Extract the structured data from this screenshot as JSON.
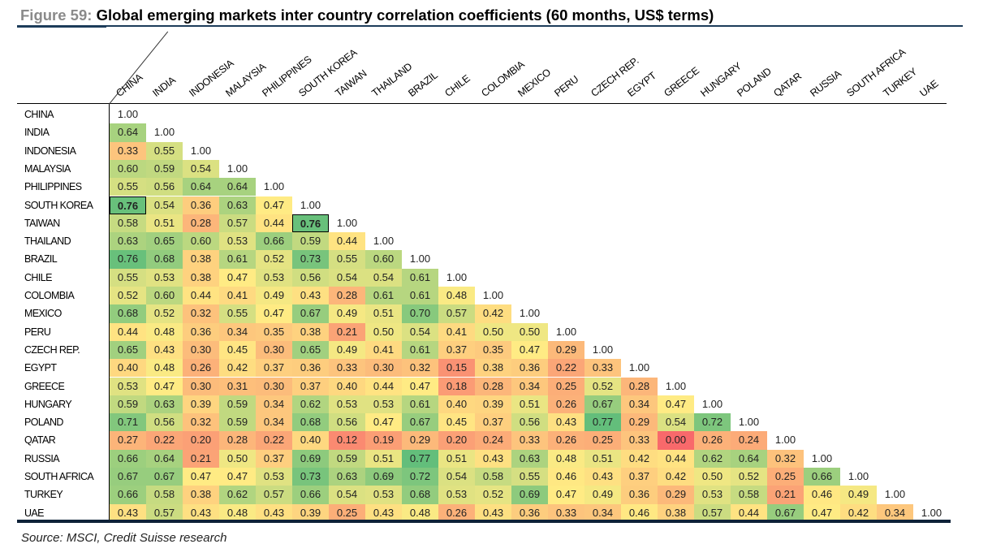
{
  "chart_data": {
    "type": "heatmap",
    "title_prefix": "Figure 59:",
    "title": "Global emerging markets inter country correlation coefficients (60 months, US$ terms)",
    "source": "Source: MSCI, Credit Suisse research",
    "columns": [
      "CHINA",
      "INDIA",
      "INDONESIA",
      "MALAYSIA",
      "PHILIPPINES",
      "SOUTH KOREA",
      "TAIWAN",
      "THAILAND",
      "BRAZIL",
      "CHILE",
      "COLOMBIA",
      "MEXICO",
      "PERU",
      "CZECH REP.",
      "EGYPT",
      "GREECE",
      "HUNGARY",
      "POLAND",
      "QATAR",
      "RUSSIA",
      "SOUTH AFRICA",
      "TURKEY",
      "UAE"
    ],
    "rows": [
      "CHINA",
      "INDIA",
      "INDONESIA",
      "MALAYSIA",
      "PHILIPPINES",
      "SOUTH KOREA",
      "TAIWAN",
      "THAILAND",
      "BRAZIL",
      "CHILE",
      "COLOMBIA",
      "MEXICO",
      "PERU",
      "CZECH REP.",
      "EGYPT",
      "GREECE",
      "HUNGARY",
      "POLAND",
      "QATAR",
      "RUSSIA",
      "SOUTH AFRICA",
      "TURKEY",
      "UAE"
    ],
    "values": [
      [
        "1.00"
      ],
      [
        "0.64",
        "1.00"
      ],
      [
        "0.33",
        "0.55",
        "1.00"
      ],
      [
        "0.60",
        "0.59",
        "0.54",
        "1.00"
      ],
      [
        "0.55",
        "0.56",
        "0.64",
        "0.64",
        "1.00"
      ],
      [
        "0.76",
        "0.54",
        "0.36",
        "0.63",
        "0.47",
        "1.00"
      ],
      [
        "0.58",
        "0.51",
        "0.28",
        "0.57",
        "0.44",
        "0.76",
        "1.00"
      ],
      [
        "0.63",
        "0.65",
        "0.60",
        "0.53",
        "0.66",
        "0.59",
        "0.44",
        "1.00"
      ],
      [
        "0.76",
        "0.68",
        "0.38",
        "0.61",
        "0.52",
        "0.73",
        "0.55",
        "0.60",
        "1.00"
      ],
      [
        "0.55",
        "0.53",
        "0.38",
        "0.47",
        "0.53",
        "0.56",
        "0.54",
        "0.54",
        "0.61",
        "1.00"
      ],
      [
        "0.52",
        "0.60",
        "0.44",
        "0.41",
        "0.49",
        "0.43",
        "0.28",
        "0.61",
        "0.61",
        "0.48",
        "1.00"
      ],
      [
        "0.68",
        "0.52",
        "0.32",
        "0.55",
        "0.47",
        "0.67",
        "0.49",
        "0.51",
        "0.70",
        "0.57",
        "0.42",
        "1.00"
      ],
      [
        "0.44",
        "0.48",
        "0.36",
        "0.34",
        "0.35",
        "0.38",
        "0.21",
        "0.50",
        "0.54",
        "0.41",
        "0.50",
        "0.50",
        "1.00"
      ],
      [
        "0.65",
        "0.43",
        "0.30",
        "0.45",
        "0.30",
        "0.65",
        "0.49",
        "0.41",
        "0.61",
        "0.37",
        "0.35",
        "0.47",
        "0.29",
        "1.00"
      ],
      [
        "0.40",
        "0.48",
        "0.26",
        "0.42",
        "0.37",
        "0.36",
        "0.33",
        "0.30",
        "0.32",
        "0.15",
        "0.38",
        "0.36",
        "0.22",
        "0.33",
        "1.00"
      ],
      [
        "0.53",
        "0.47",
        "0.30",
        "0.31",
        "0.30",
        "0.37",
        "0.40",
        "0.44",
        "0.47",
        "0.18",
        "0.28",
        "0.34",
        "0.25",
        "0.52",
        "0.28",
        "1.00"
      ],
      [
        "0.59",
        "0.63",
        "0.39",
        "0.59",
        "0.34",
        "0.62",
        "0.53",
        "0.53",
        "0.61",
        "0.40",
        "0.39",
        "0.51",
        "0.26",
        "0.67",
        "0.34",
        "0.47",
        "1.00"
      ],
      [
        "0.71",
        "0.56",
        "0.32",
        "0.59",
        "0.34",
        "0.68",
        "0.56",
        "0.47",
        "0.67",
        "0.45",
        "0.37",
        "0.56",
        "0.43",
        "0.77",
        "0.29",
        "0.54",
        "0.72",
        "1.00"
      ],
      [
        "0.27",
        "0.22",
        "0.20",
        "0.28",
        "0.22",
        "0.40",
        "0.12",
        "0.19",
        "0.29",
        "0.20",
        "0.24",
        "0.33",
        "0.26",
        "0.25",
        "0.33",
        "0.00",
        "0.26",
        "0.24",
        "1.00"
      ],
      [
        "0.66",
        "0.64",
        "0.21",
        "0.50",
        "0.37",
        "0.69",
        "0.59",
        "0.51",
        "0.77",
        "0.51",
        "0.43",
        "0.63",
        "0.48",
        "0.51",
        "0.42",
        "0.44",
        "0.62",
        "0.64",
        "0.32",
        "1.00"
      ],
      [
        "0.67",
        "0.67",
        "0.47",
        "0.47",
        "0.53",
        "0.73",
        "0.63",
        "0.69",
        "0.72",
        "0.54",
        "0.58",
        "0.55",
        "0.46",
        "0.43",
        "0.37",
        "0.42",
        "0.50",
        "0.52",
        "0.25",
        "0.66",
        "1.00"
      ],
      [
        "0.66",
        "0.58",
        "0.38",
        "0.62",
        "0.57",
        "0.66",
        "0.54",
        "0.53",
        "0.68",
        "0.53",
        "0.52",
        "0.69",
        "0.47",
        "0.49",
        "0.36",
        "0.29",
        "0.53",
        "0.58",
        "0.21",
        "0.46",
        "0.49",
        "1.00"
      ],
      [
        "0.43",
        "0.57",
        "0.43",
        "0.48",
        "0.43",
        "0.39",
        "0.25",
        "0.43",
        "0.48",
        "0.26",
        "0.43",
        "0.36",
        "0.33",
        "0.34",
        "0.46",
        "0.38",
        "0.57",
        "0.44",
        "0.67",
        "0.47",
        "0.42",
        "0.34",
        "1.00"
      ]
    ],
    "highlighted": [
      [
        "SOUTH KOREA",
        "CHINA"
      ],
      [
        "TAIWAN",
        "SOUTH KOREA"
      ]
    ],
    "color_scale": {
      "low": "#f8696b",
      "mid": "#ffeb84",
      "high": "#63be7b",
      "diagonal": "#ffffff"
    }
  }
}
